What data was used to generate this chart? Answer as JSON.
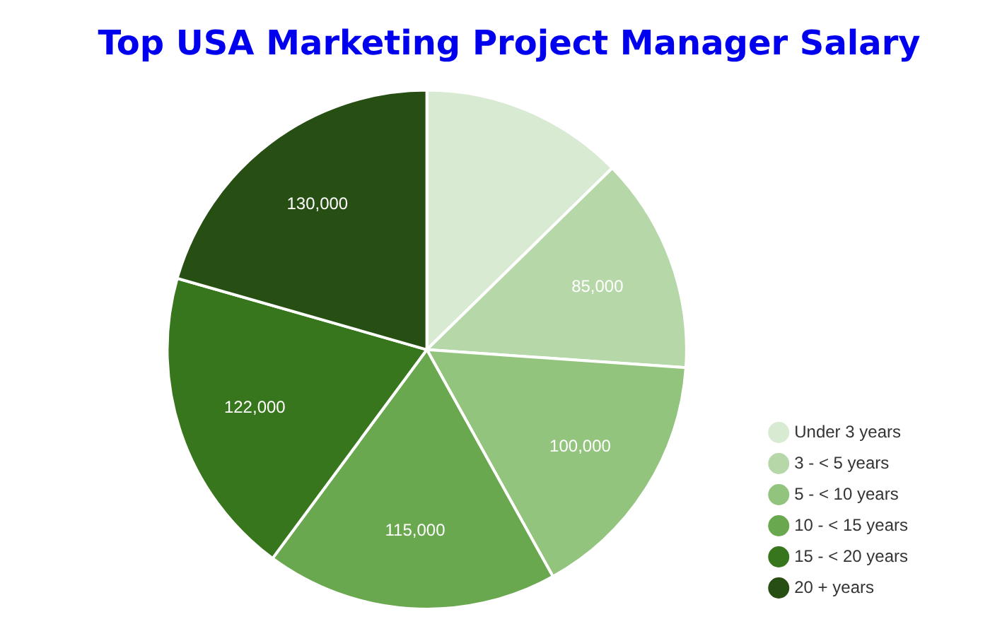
{
  "chart_data": {
    "type": "pie",
    "title": "Top USA Marketing Project Manager Salary",
    "categories": [
      "Under 3 years",
      "3 - < 5 years",
      "5 - < 10 years",
      "10 - < 15 years",
      "15 - < 20 years",
      "20 + years"
    ],
    "values": [
      80000,
      85000,
      100000,
      115000,
      122000,
      130000
    ],
    "value_labels": [
      null,
      "85,000",
      "100,000",
      "115,000",
      "122,000",
      "130,000"
    ],
    "colors": [
      "#d9ead3",
      "#b6d7a8",
      "#93c47d",
      "#6aa84f",
      "#38761d",
      "#274e13"
    ],
    "legend": "right"
  }
}
